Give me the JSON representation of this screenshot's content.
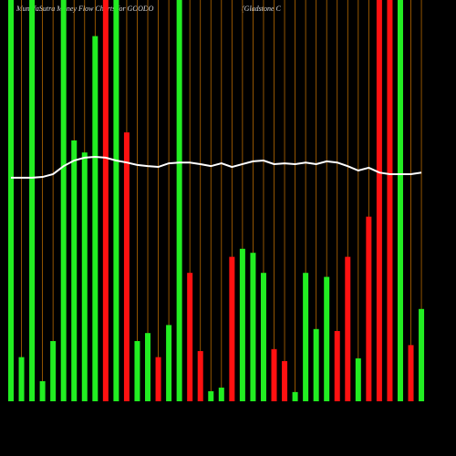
{
  "chart_data": {
    "type": "bar",
    "title": "MunafaSutra Money Flow Charts for GOODO",
    "subtitle": "(Gladstone C",
    "categories": [
      null,
      null,
      null,
      null,
      null,
      null,
      null,
      null,
      null,
      null,
      null,
      null,
      null,
      null,
      null,
      null,
      null,
      null,
      null,
      null,
      null,
      null,
      null,
      null,
      null,
      null,
      null,
      null,
      null,
      null,
      null,
      null,
      null,
      null,
      null,
      null,
      null,
      null,
      null,
      null
    ],
    "values": [
      100,
      11,
      100,
      5,
      15,
      100,
      65,
      62,
      91,
      100,
      100,
      67,
      15,
      17,
      11,
      19,
      100,
      32,
      12.5,
      2.5,
      3.4,
      36,
      38,
      37,
      32,
      13,
      10,
      2.3,
      32,
      18,
      31,
      17.5,
      36,
      10.7,
      46,
      100,
      100,
      100,
      14,
      23
    ],
    "colors": [
      "#22ee22",
      "#22ee22",
      "#22ee22",
      "#22ee22",
      "#22ee22",
      "#22ee22",
      "#22ee22",
      "#22ee22",
      "#22ee22",
      "#ff1111",
      "#22ee22",
      "#ff1111",
      "#22ee22",
      "#22ee22",
      "#ff1111",
      "#22ee22",
      "#22ee22",
      "#ff1111",
      "#ff1111",
      "#22ee22",
      "#22ee22",
      "#ff1111",
      "#22ee22",
      "#22ee22",
      "#22ee22",
      "#ff1111",
      "#ff1111",
      "#22ee22",
      "#22ee22",
      "#22ee22",
      "#22ee22",
      "#ff1111",
      "#ff1111",
      "#22ee22",
      "#ff1111",
      "#ff1111",
      "#ff1111",
      "#22ee22",
      "#ff1111",
      "#22ee22"
    ],
    "line": {
      "color": "#ffffff",
      "values": [
        55.7,
        55.7,
        55.7,
        55.9,
        56.6,
        58.6,
        60,
        60.7,
        60.9,
        60.7,
        60,
        59.5,
        58.9,
        58.6,
        58.4,
        59.3,
        59.5,
        59.5,
        59.1,
        58.6,
        59.3,
        58.4,
        59.1,
        59.8,
        60,
        59.1,
        59.3,
        59.1,
        59.5,
        59.1,
        59.8,
        59.5,
        58.6,
        57.5,
        58.2,
        57,
        56.6,
        56.6,
        56.6,
        57
      ]
    },
    "grid_color": "#b86a00",
    "ylim": [
      0,
      100
    ]
  }
}
